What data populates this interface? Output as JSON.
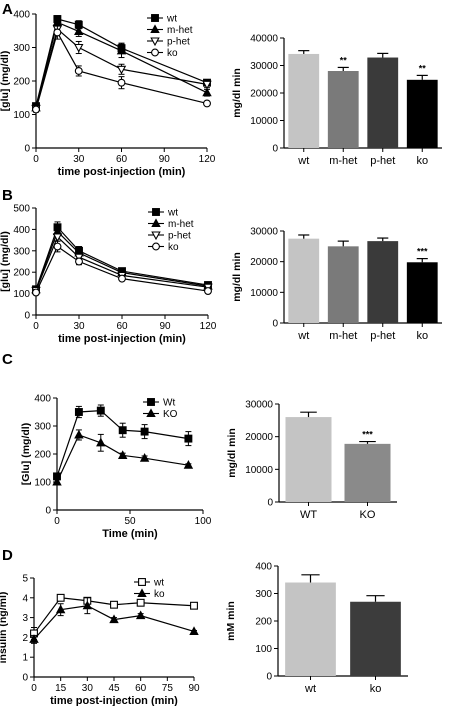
{
  "panels": [
    {
      "id": "A",
      "letter": "A"
    },
    {
      "id": "B",
      "letter": "B"
    },
    {
      "id": "C",
      "letter": "C"
    },
    {
      "id": "D",
      "letter": "D"
    }
  ],
  "chart_data": [
    {
      "panel": "A",
      "type": "line",
      "xlabel": "time post-injection (min)",
      "ylabel": "[glu] (mg/dl)",
      "xlim": [
        0,
        120
      ],
      "ylim": [
        0,
        400
      ],
      "xticks": [
        0,
        30,
        60,
        90,
        120
      ],
      "yticks": [
        0,
        100,
        200,
        300,
        400
      ],
      "legend_position": "top-right",
      "series": [
        {
          "name": "wt",
          "marker": "square-filled",
          "x": [
            0,
            15,
            30,
            60,
            120
          ],
          "y": [
            125,
            385,
            368,
            298,
            195
          ],
          "err": [
            8,
            10,
            12,
            15,
            8
          ]
        },
        {
          "name": "m-het",
          "marker": "triangle-up-filled",
          "x": [
            0,
            15,
            30,
            60,
            120
          ],
          "y": [
            120,
            375,
            348,
            290,
            165
          ],
          "err": [
            8,
            12,
            15,
            20,
            10
          ]
        },
        {
          "name": "p-het",
          "marker": "triangle-down-open",
          "x": [
            0,
            15,
            30,
            60,
            120
          ],
          "y": [
            118,
            355,
            300,
            235,
            190
          ],
          "err": [
            8,
            15,
            18,
            15,
            10
          ]
        },
        {
          "name": "ko",
          "marker": "circle-open",
          "x": [
            0,
            15,
            30,
            60,
            120
          ],
          "y": [
            115,
            345,
            230,
            195,
            133
          ],
          "err": [
            8,
            20,
            15,
            18,
            5
          ]
        }
      ]
    },
    {
      "panel": "A",
      "type": "bar",
      "categories": [
        "wt",
        "m-het",
        "p-het",
        "ko"
      ],
      "values": [
        34200,
        28000,
        32900,
        24800
      ],
      "errors": [
        1200,
        1300,
        1500,
        1600
      ],
      "colors": [
        "#c4c4c4",
        "#7a7a7a",
        "#3a3a3a",
        "#000000"
      ],
      "annotations": [
        "",
        "**",
        "",
        "**"
      ],
      "ylabel": "mg/dl min",
      "ylim": [
        0,
        40000
      ],
      "yticks": [
        0,
        10000,
        20000,
        30000,
        40000
      ]
    },
    {
      "panel": "B",
      "type": "line",
      "xlabel": "time post-injection (min)",
      "ylabel": "[glu] (mg/dl)",
      "xlim": [
        0,
        120
      ],
      "ylim": [
        0,
        500
      ],
      "xticks": [
        0,
        30,
        60,
        90,
        120
      ],
      "yticks": [
        0,
        100,
        200,
        300,
        400,
        500
      ],
      "legend_position": "top-right",
      "series": [
        {
          "name": "wt",
          "marker": "square-filled",
          "x": [
            0,
            15,
            30,
            60,
            120
          ],
          "y": [
            120,
            410,
            300,
            205,
            140
          ],
          "err": [
            8,
            25,
            20,
            10,
            8
          ]
        },
        {
          "name": "m-het",
          "marker": "triangle-up-filled",
          "x": [
            0,
            15,
            30,
            60,
            120
          ],
          "y": [
            118,
            390,
            290,
            198,
            135
          ],
          "err": [
            8,
            22,
            18,
            10,
            8
          ]
        },
        {
          "name": "p-het",
          "marker": "triangle-down-open",
          "x": [
            0,
            15,
            30,
            60,
            120
          ],
          "y": [
            115,
            365,
            270,
            185,
            130
          ],
          "err": [
            8,
            20,
            15,
            10,
            8
          ]
        },
        {
          "name": "ko",
          "marker": "circle-open",
          "x": [
            0,
            15,
            30,
            60,
            120
          ],
          "y": [
            105,
            320,
            250,
            170,
            112
          ],
          "err": [
            8,
            25,
            15,
            10,
            5
          ]
        }
      ]
    },
    {
      "panel": "B",
      "type": "bar",
      "categories": [
        "wt",
        "m-het",
        "p-het",
        "ko"
      ],
      "values": [
        27500,
        25000,
        26700,
        19800
      ],
      "errors": [
        1200,
        1700,
        1000,
        1200
      ],
      "colors": [
        "#c4c4c4",
        "#7a7a7a",
        "#3a3a3a",
        "#000000"
      ],
      "annotations": [
        "",
        "",
        "",
        "***"
      ],
      "ylabel": "mg/dl min",
      "ylim": [
        0,
        30000
      ],
      "yticks": [
        0,
        10000,
        20000,
        30000
      ]
    },
    {
      "panel": "C",
      "type": "line",
      "xlabel": "Time (min)",
      "ylabel": "[Glu] (mg/dl)",
      "xlim": [
        0,
        100
      ],
      "ylim": [
        0,
        400
      ],
      "xticks": [
        0,
        50,
        100
      ],
      "yticks": [
        0,
        100,
        200,
        300,
        400
      ],
      "legend_position": "top-right",
      "series": [
        {
          "name": "Wt",
          "marker": "square-filled",
          "x": [
            0,
            15,
            30,
            45,
            60,
            90
          ],
          "y": [
            120,
            350,
            355,
            285,
            280,
            255
          ],
          "err": [
            8,
            20,
            20,
            25,
            25,
            25
          ]
        },
        {
          "name": "KO",
          "marker": "triangle-up-filled",
          "x": [
            0,
            15,
            30,
            45,
            60,
            90
          ],
          "y": [
            100,
            268,
            240,
            195,
            185,
            160
          ],
          "err": [
            8,
            18,
            30,
            8,
            8,
            5
          ]
        }
      ]
    },
    {
      "panel": "C",
      "type": "bar",
      "categories": [
        "WT",
        "KO"
      ],
      "values": [
        26000,
        17800
      ],
      "errors": [
        1500,
        700
      ],
      "colors": [
        "#c4c4c4",
        "#8a8a8a"
      ],
      "annotations": [
        "",
        "***"
      ],
      "ylabel": "mg/dl min",
      "ylim": [
        0,
        30000
      ],
      "yticks": [
        0,
        10000,
        20000,
        30000
      ]
    },
    {
      "panel": "D",
      "type": "line",
      "xlabel": "time post-injection (min)",
      "ylabel": "insulin (ng/ml)",
      "xlim": [
        0,
        90
      ],
      "ylim": [
        0,
        5
      ],
      "xticks": [
        0,
        15,
        30,
        45,
        60,
        75,
        90
      ],
      "yticks": [
        0,
        1,
        2,
        3,
        4,
        5
      ],
      "legend_position": "top-right",
      "series": [
        {
          "name": "wt",
          "marker": "square-open",
          "x": [
            0,
            15,
            30,
            45,
            60,
            90
          ],
          "y": [
            2.2,
            4.0,
            3.85,
            3.65,
            3.75,
            3.6
          ],
          "err": [
            0.3,
            0.1,
            0.15,
            0.1,
            0.1,
            0.1
          ]
        },
        {
          "name": "ko",
          "marker": "triangle-up-filled",
          "x": [
            0,
            15,
            30,
            45,
            60,
            90
          ],
          "y": [
            1.9,
            3.4,
            3.6,
            2.9,
            3.1,
            2.3
          ],
          "err": [
            0.2,
            0.3,
            0.4,
            0.1,
            0.1,
            0.05
          ]
        }
      ]
    },
    {
      "panel": "D",
      "type": "bar",
      "categories": [
        "wt",
        "ko"
      ],
      "values": [
        340,
        270
      ],
      "errors": [
        28,
        22
      ],
      "colors": [
        "#c4c4c4",
        "#3c3c3c"
      ],
      "annotations": [
        "",
        ""
      ],
      "ylabel": "mM min",
      "ylim": [
        0,
        400
      ],
      "yticks": [
        0,
        100,
        200,
        300,
        400
      ]
    }
  ]
}
